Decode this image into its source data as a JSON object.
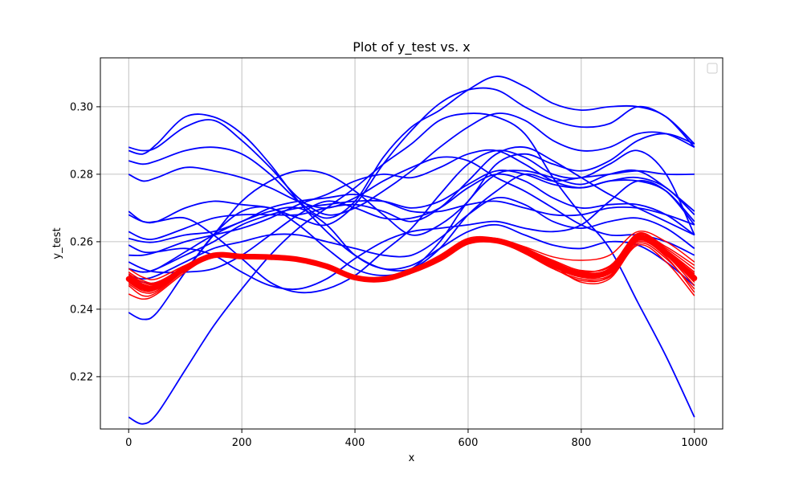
{
  "chart_data": {
    "type": "line",
    "title": "Plot of y_test vs. x",
    "xlabel": "x",
    "ylabel": "y_test",
    "xlim": [
      -50,
      1050
    ],
    "ylim": [
      0.2045,
      0.3145
    ],
    "xticks": [
      0,
      200,
      400,
      600,
      800,
      1000
    ],
    "yticks": [
      0.22,
      0.24,
      0.26,
      0.28,
      0.3
    ],
    "xtick_labels": [
      "0",
      "200",
      "400",
      "600",
      "800",
      "1000"
    ],
    "ytick_labels": [
      "0.22",
      "0.24",
      "0.26",
      "0.28",
      "0.30"
    ],
    "grid": true,
    "legend": {
      "placement": "top-right",
      "entries": []
    },
    "colors": {
      "blue": "#0000ff",
      "red": "#ff0000"
    },
    "x": [
      0,
      25,
      50,
      100,
      150,
      200,
      250,
      300,
      350,
      400,
      450,
      500,
      550,
      600,
      650,
      700,
      750,
      800,
      850,
      900,
      950,
      1000
    ],
    "blue_series": [
      {
        "values": [
          0.208,
          0.206,
          0.209,
          0.222,
          0.235,
          0.246,
          0.256,
          0.264,
          0.27,
          0.276,
          0.283,
          0.289,
          0.296,
          0.298,
          0.297,
          0.292,
          0.279,
          0.268,
          0.258,
          0.242,
          0.226,
          0.208
        ]
      },
      {
        "values": [
          0.288,
          0.287,
          0.288,
          0.294,
          0.296,
          0.29,
          0.282,
          0.273,
          0.268,
          0.27,
          0.275,
          0.281,
          0.288,
          0.294,
          0.298,
          0.296,
          0.29,
          0.287,
          0.288,
          0.292,
          0.292,
          0.288
        ]
      },
      {
        "values": [
          0.287,
          0.286,
          0.289,
          0.297,
          0.297,
          0.292,
          0.283,
          0.272,
          0.263,
          0.256,
          0.252,
          0.252,
          0.258,
          0.268,
          0.275,
          0.28,
          0.278,
          0.279,
          0.28,
          0.281,
          0.28,
          0.28
        ]
      },
      {
        "values": [
          0.268,
          0.266,
          0.266,
          0.27,
          0.272,
          0.271,
          0.27,
          0.267,
          0.265,
          0.271,
          0.283,
          0.293,
          0.301,
          0.305,
          0.305,
          0.3,
          0.296,
          0.294,
          0.295,
          0.3,
          0.297,
          0.289
        ]
      },
      {
        "values": [
          0.28,
          0.278,
          0.279,
          0.282,
          0.281,
          0.279,
          0.276,
          0.272,
          0.27,
          0.273,
          0.278,
          0.282,
          0.285,
          0.284,
          0.279,
          0.275,
          0.27,
          0.265,
          0.262,
          0.262,
          0.26,
          0.256
        ]
      },
      {
        "values": [
          0.284,
          0.283,
          0.284,
          0.287,
          0.288,
          0.286,
          0.28,
          0.272,
          0.267,
          0.272,
          0.285,
          0.294,
          0.299,
          0.305,
          0.309,
          0.306,
          0.301,
          0.299,
          0.3,
          0.3,
          0.297,
          0.288
        ]
      },
      {
        "values": [
          0.263,
          0.261,
          0.261,
          0.264,
          0.267,
          0.268,
          0.268,
          0.268,
          0.27,
          0.271,
          0.269,
          0.266,
          0.27,
          0.278,
          0.286,
          0.288,
          0.284,
          0.279,
          0.274,
          0.27,
          0.266,
          0.262
        ]
      },
      {
        "values": [
          0.256,
          0.256,
          0.257,
          0.26,
          0.262,
          0.264,
          0.267,
          0.271,
          0.274,
          0.278,
          0.28,
          0.279,
          0.282,
          0.286,
          0.287,
          0.283,
          0.278,
          0.276,
          0.278,
          0.278,
          0.275,
          0.266
        ]
      },
      {
        "values": [
          0.259,
          0.257,
          0.257,
          0.258,
          0.256,
          0.251,
          0.247,
          0.246,
          0.249,
          0.255,
          0.26,
          0.263,
          0.264,
          0.265,
          0.266,
          0.264,
          0.263,
          0.265,
          0.272,
          0.278,
          0.275,
          0.265
        ]
      },
      {
        "values": [
          0.261,
          0.26,
          0.26,
          0.262,
          0.263,
          0.266,
          0.27,
          0.272,
          0.273,
          0.274,
          0.272,
          0.269,
          0.269,
          0.271,
          0.272,
          0.27,
          0.268,
          0.268,
          0.27,
          0.27,
          0.268,
          0.265
        ]
      },
      {
        "values": [
          0.254,
          0.252,
          0.251,
          0.251,
          0.252,
          0.256,
          0.262,
          0.268,
          0.272,
          0.27,
          0.267,
          0.267,
          0.27,
          0.276,
          0.28,
          0.278,
          0.273,
          0.27,
          0.271,
          0.271,
          0.268,
          0.262
        ]
      },
      {
        "values": [
          0.252,
          0.251,
          0.252,
          0.257,
          0.262,
          0.266,
          0.269,
          0.27,
          0.265,
          0.256,
          0.252,
          0.253,
          0.258,
          0.263,
          0.265,
          0.262,
          0.259,
          0.258,
          0.26,
          0.259,
          0.254,
          0.247
        ]
      },
      {
        "values": [
          0.25,
          0.249,
          0.25,
          0.254,
          0.258,
          0.26,
          0.262,
          0.262,
          0.26,
          0.258,
          0.256,
          0.256,
          0.261,
          0.268,
          0.273,
          0.271,
          0.266,
          0.264,
          0.266,
          0.267,
          0.264,
          0.258
        ]
      },
      {
        "values": [
          0.239,
          0.237,
          0.239,
          0.251,
          0.262,
          0.269,
          0.27,
          0.265,
          0.258,
          0.252,
          0.25,
          0.252,
          0.26,
          0.272,
          0.28,
          0.281,
          0.279,
          0.277,
          0.28,
          0.281,
          0.276,
          0.269
        ]
      },
      {
        "values": [
          0.269,
          0.266,
          0.266,
          0.267,
          0.262,
          0.255,
          0.248,
          0.245,
          0.246,
          0.25,
          0.257,
          0.264,
          0.274,
          0.283,
          0.287,
          0.285,
          0.28,
          0.279,
          0.283,
          0.287,
          0.28,
          0.262
        ]
      },
      {
        "values": [
          0.25,
          0.248,
          0.248,
          0.252,
          0.262,
          0.272,
          0.278,
          0.281,
          0.28,
          0.275,
          0.268,
          0.262,
          0.265,
          0.272,
          0.283,
          0.286,
          0.283,
          0.281,
          0.284,
          0.29,
          0.292,
          0.289
        ]
      },
      {
        "values": [
          0.252,
          0.251,
          0.252,
          0.256,
          0.26,
          0.265,
          0.268,
          0.27,
          0.271,
          0.272,
          0.272,
          0.27,
          0.272,
          0.277,
          0.281,
          0.28,
          0.277,
          0.276,
          0.278,
          0.279,
          0.276,
          0.268
        ]
      }
    ],
    "red_series": [
      {
        "values": [
          0.2495,
          0.247,
          0.247,
          0.2525,
          0.2555,
          0.2555,
          0.2555,
          0.255,
          0.253,
          0.25,
          0.249,
          0.251,
          0.2545,
          0.2595,
          0.26,
          0.257,
          0.253,
          0.25,
          0.251,
          0.2605,
          0.256,
          0.248
        ]
      },
      {
        "values": [
          0.251,
          0.2485,
          0.248,
          0.2525,
          0.2565,
          0.2558,
          0.2555,
          0.2545,
          0.2525,
          0.2495,
          0.249,
          0.2515,
          0.255,
          0.26,
          0.2605,
          0.2575,
          0.2535,
          0.2505,
          0.2515,
          0.261,
          0.2565,
          0.2495
        ]
      },
      {
        "values": [
          0.252,
          0.2495,
          0.249,
          0.253,
          0.256,
          0.2558,
          0.2555,
          0.2548,
          0.2528,
          0.2493,
          0.2488,
          0.252,
          0.2555,
          0.2605,
          0.2605,
          0.258,
          0.2545,
          0.2515,
          0.2525,
          0.262,
          0.2585,
          0.253
        ]
      },
      {
        "values": [
          0.248,
          0.2455,
          0.246,
          0.252,
          0.256,
          0.2556,
          0.2553,
          0.2545,
          0.2525,
          0.249,
          0.2486,
          0.251,
          0.2545,
          0.2595,
          0.26,
          0.2565,
          0.252,
          0.249,
          0.2495,
          0.2595,
          0.255,
          0.246
        ]
      },
      {
        "values": [
          0.247,
          0.244,
          0.245,
          0.2515,
          0.2558,
          0.2556,
          0.2553,
          0.2547,
          0.2527,
          0.2492,
          0.249,
          0.2512,
          0.2548,
          0.2598,
          0.2602,
          0.257,
          0.2525,
          0.2495,
          0.25,
          0.26,
          0.2555,
          0.245
        ]
      },
      {
        "values": [
          0.2445,
          0.243,
          0.2445,
          0.251,
          0.2558,
          0.2555,
          0.2554,
          0.2548,
          0.2528,
          0.2494,
          0.2488,
          0.2515,
          0.255,
          0.26,
          0.2603,
          0.2575,
          0.253,
          0.248,
          0.249,
          0.259,
          0.254,
          0.244
        ]
      },
      {
        "values": [
          0.25,
          0.248,
          0.2475,
          0.2525,
          0.2562,
          0.2557,
          0.2554,
          0.2546,
          0.2526,
          0.2495,
          0.2492,
          0.2518,
          0.256,
          0.261,
          0.261,
          0.2585,
          0.2555,
          0.2545,
          0.256,
          0.263,
          0.26,
          0.254
        ]
      },
      {
        "values": [
          0.249,
          0.2465,
          0.2465,
          0.2522,
          0.2558,
          0.2556,
          0.2555,
          0.2548,
          0.2527,
          0.2493,
          0.2487,
          0.2512,
          0.255,
          0.2598,
          0.26,
          0.2572,
          0.2528,
          0.25,
          0.2505,
          0.2605,
          0.256,
          0.247
        ]
      },
      {
        "values": [
          0.25,
          0.2475,
          0.2472,
          0.2525,
          0.256,
          0.2557,
          0.2555,
          0.2549,
          0.2529,
          0.2496,
          0.2491,
          0.2513,
          0.2547,
          0.2597,
          0.2601,
          0.2568,
          0.2522,
          0.2485,
          0.2498,
          0.2612,
          0.257,
          0.25
        ]
      },
      {
        "values": [
          0.2485,
          0.246,
          0.2462,
          0.252,
          0.2559,
          0.2555,
          0.2554,
          0.2547,
          0.2526,
          0.2492,
          0.2489,
          0.2511,
          0.2546,
          0.2596,
          0.2602,
          0.2573,
          0.2532,
          0.2498,
          0.2512,
          0.2622,
          0.2575,
          0.251
        ]
      },
      {
        "values": [
          0.2475,
          0.245,
          0.2455,
          0.2518,
          0.2557,
          0.2554,
          0.2553,
          0.2546,
          0.2525,
          0.2491,
          0.2487,
          0.2511,
          0.2549,
          0.2602,
          0.2606,
          0.258,
          0.254,
          0.251,
          0.252,
          0.2625,
          0.258,
          0.252
        ]
      },
      {
        "values": [
          0.2505,
          0.248,
          0.2478,
          0.2527,
          0.2561,
          0.2557,
          0.2556,
          0.2549,
          0.2529,
          0.2495,
          0.249,
          0.2514,
          0.2552,
          0.2603,
          0.2606,
          0.2582,
          0.2542,
          0.2512,
          0.2528,
          0.2615,
          0.257,
          0.2505
        ]
      }
    ]
  }
}
